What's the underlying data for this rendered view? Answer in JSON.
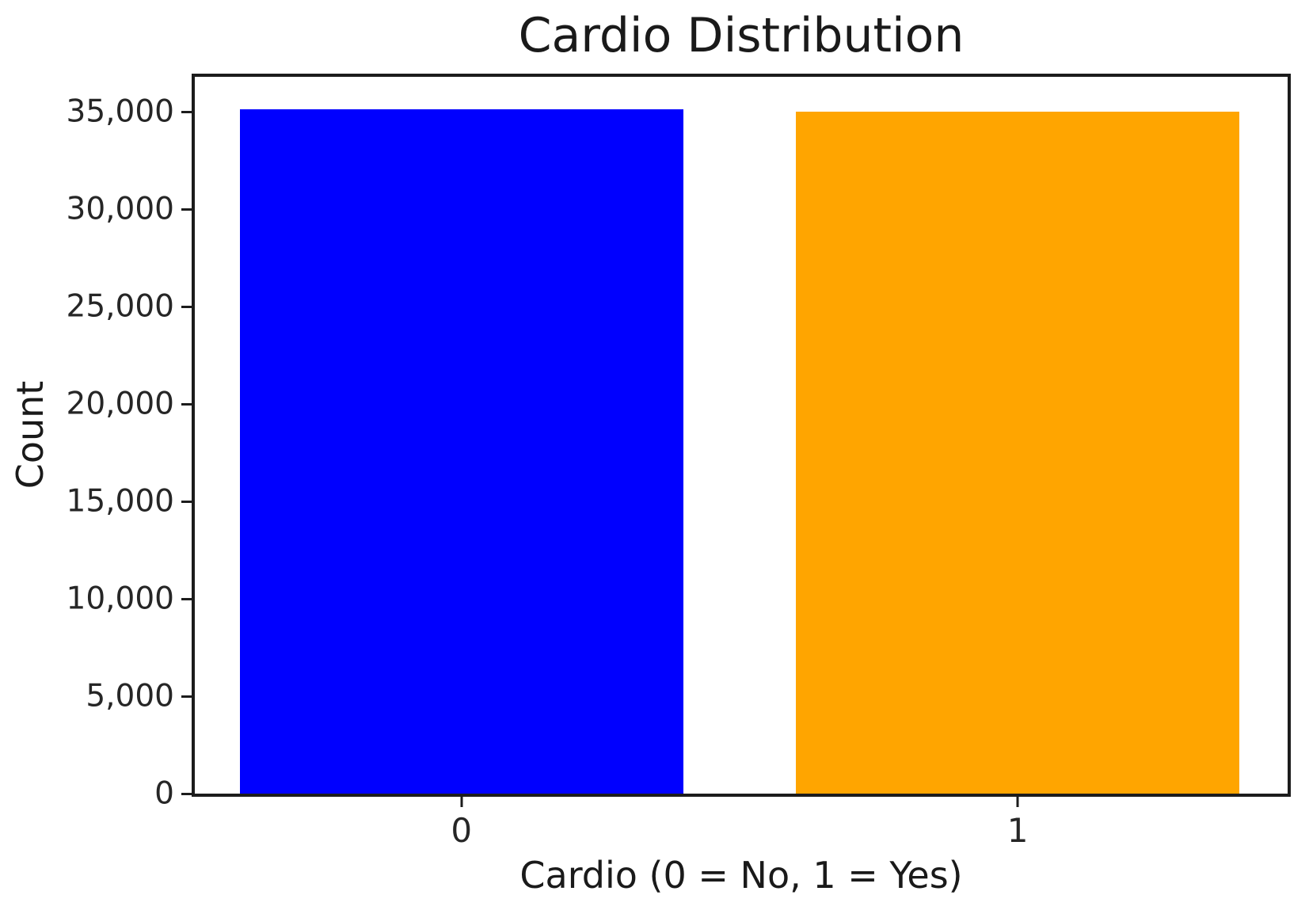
{
  "chart_data": {
    "type": "bar",
    "title": "Cardio Distribution",
    "xlabel": "Cardio (0 = No, 1 = Yes)",
    "ylabel": "Count",
    "categories": [
      "0",
      "1"
    ],
    "values": [
      35150,
      35000
    ],
    "bar_colors": [
      "#0000ff",
      "#ffa500"
    ],
    "yticks": [
      0,
      5000,
      10000,
      15000,
      20000,
      25000,
      30000,
      35000
    ],
    "ytick_labels": [
      "0",
      "5,000",
      "10,000",
      "15,000",
      "20,000",
      "25,000",
      "30,000",
      "35,000"
    ],
    "ylim": [
      0,
      36800
    ],
    "grid": false,
    "legend": "none",
    "axis_color": "#1c1c1c",
    "background_color": "#ffffff"
  }
}
